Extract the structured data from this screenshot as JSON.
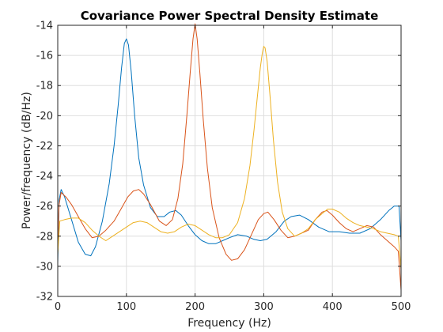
{
  "chart_data": {
    "type": "line",
    "title": "Covariance Power Spectral Density Estimate",
    "xlabel": "Frequency (Hz)",
    "ylabel": "Power/frequency (dB/Hz)",
    "xlim": [
      0,
      500
    ],
    "ylim": [
      -32,
      -14
    ],
    "xticks": [
      0,
      100,
      200,
      300,
      400,
      500
    ],
    "yticks": [
      -32,
      -30,
      -28,
      -26,
      -24,
      -22,
      -20,
      -18,
      -16,
      -14
    ],
    "grid": true,
    "series": [
      {
        "color": "#0072bd",
        "points": [
          [
            0,
            -29.8
          ],
          [
            2,
            -25.6
          ],
          [
            5,
            -24.9
          ],
          [
            10,
            -25.4
          ],
          [
            20,
            -26.9
          ],
          [
            30,
            -28.4
          ],
          [
            40,
            -29.2
          ],
          [
            48,
            -29.3
          ],
          [
            55,
            -28.7
          ],
          [
            65,
            -27.0
          ],
          [
            75,
            -24.5
          ],
          [
            82,
            -22.0
          ],
          [
            88,
            -19.3
          ],
          [
            93,
            -16.8
          ],
          [
            97,
            -15.2
          ],
          [
            100,
            -14.9
          ],
          [
            103,
            -15.3
          ],
          [
            107,
            -17.1
          ],
          [
            112,
            -20.0
          ],
          [
            118,
            -22.8
          ],
          [
            125,
            -24.6
          ],
          [
            135,
            -26.1
          ],
          [
            145,
            -26.7
          ],
          [
            155,
            -26.7
          ],
          [
            163,
            -26.4
          ],
          [
            172,
            -26.3
          ],
          [
            180,
            -26.6
          ],
          [
            190,
            -27.3
          ],
          [
            200,
            -27.9
          ],
          [
            210,
            -28.3
          ],
          [
            220,
            -28.5
          ],
          [
            230,
            -28.5
          ],
          [
            240,
            -28.3
          ],
          [
            250,
            -28.1
          ],
          [
            262,
            -27.9
          ],
          [
            275,
            -28.0
          ],
          [
            285,
            -28.2
          ],
          [
            295,
            -28.3
          ],
          [
            305,
            -28.2
          ],
          [
            318,
            -27.7
          ],
          [
            330,
            -27.0
          ],
          [
            340,
            -26.7
          ],
          [
            352,
            -26.6
          ],
          [
            365,
            -26.9
          ],
          [
            380,
            -27.4
          ],
          [
            395,
            -27.7
          ],
          [
            410,
            -27.7
          ],
          [
            425,
            -27.8
          ],
          [
            440,
            -27.8
          ],
          [
            455,
            -27.5
          ],
          [
            470,
            -26.9
          ],
          [
            482,
            -26.3
          ],
          [
            490,
            -26.0
          ],
          [
            497,
            -26.0
          ],
          [
            500,
            -28.3
          ]
        ]
      },
      {
        "color": "#d95319",
        "points": [
          [
            0,
            -28.7
          ],
          [
            2,
            -25.9
          ],
          [
            5,
            -25.1
          ],
          [
            12,
            -25.4
          ],
          [
            20,
            -25.9
          ],
          [
            30,
            -26.7
          ],
          [
            40,
            -27.5
          ],
          [
            50,
            -28.1
          ],
          [
            60,
            -28.0
          ],
          [
            70,
            -27.6
          ],
          [
            82,
            -27.0
          ],
          [
            92,
            -26.2
          ],
          [
            102,
            -25.4
          ],
          [
            110,
            -25.0
          ],
          [
            118,
            -24.9
          ],
          [
            125,
            -25.2
          ],
          [
            135,
            -25.9
          ],
          [
            148,
            -27.0
          ],
          [
            158,
            -27.3
          ],
          [
            167,
            -26.9
          ],
          [
            175,
            -25.5
          ],
          [
            182,
            -23.2
          ],
          [
            188,
            -20.0
          ],
          [
            193,
            -17.1
          ],
          [
            197,
            -14.9
          ],
          [
            200,
            -13.9
          ],
          [
            203,
            -14.9
          ],
          [
            207,
            -17.2
          ],
          [
            212,
            -20.3
          ],
          [
            218,
            -23.5
          ],
          [
            225,
            -26.1
          ],
          [
            235,
            -28.1
          ],
          [
            245,
            -29.2
          ],
          [
            253,
            -29.6
          ],
          [
            262,
            -29.5
          ],
          [
            272,
            -28.9
          ],
          [
            282,
            -27.9
          ],
          [
            292,
            -26.9
          ],
          [
            300,
            -26.5
          ],
          [
            306,
            -26.4
          ],
          [
            315,
            -26.9
          ],
          [
            325,
            -27.6
          ],
          [
            335,
            -28.1
          ],
          [
            345,
            -28.0
          ],
          [
            355,
            -27.8
          ],
          [
            365,
            -27.6
          ],
          [
            375,
            -26.9
          ],
          [
            385,
            -26.4
          ],
          [
            392,
            -26.3
          ],
          [
            400,
            -26.6
          ],
          [
            410,
            -27.1
          ],
          [
            420,
            -27.5
          ],
          [
            430,
            -27.7
          ],
          [
            440,
            -27.5
          ],
          [
            450,
            -27.3
          ],
          [
            460,
            -27.4
          ],
          [
            470,
            -27.9
          ],
          [
            480,
            -28.3
          ],
          [
            490,
            -28.7
          ],
          [
            496,
            -29.0
          ],
          [
            500,
            -31.6
          ]
        ]
      },
      {
        "color": "#edb120",
        "points": [
          [
            0,
            -29.2
          ],
          [
            3,
            -27.0
          ],
          [
            10,
            -26.9
          ],
          [
            20,
            -26.8
          ],
          [
            30,
            -26.8
          ],
          [
            40,
            -27.1
          ],
          [
            50,
            -27.6
          ],
          [
            60,
            -28.0
          ],
          [
            70,
            -28.3
          ],
          [
            80,
            -28.0
          ],
          [
            90,
            -27.7
          ],
          [
            100,
            -27.4
          ],
          [
            110,
            -27.1
          ],
          [
            120,
            -27.0
          ],
          [
            130,
            -27.1
          ],
          [
            140,
            -27.4
          ],
          [
            150,
            -27.7
          ],
          [
            160,
            -27.8
          ],
          [
            170,
            -27.7
          ],
          [
            180,
            -27.4
          ],
          [
            190,
            -27.2
          ],
          [
            200,
            -27.3
          ],
          [
            210,
            -27.6
          ],
          [
            220,
            -27.9
          ],
          [
            230,
            -28.1
          ],
          [
            240,
            -28.1
          ],
          [
            250,
            -27.9
          ],
          [
            262,
            -27.1
          ],
          [
            272,
            -25.5
          ],
          [
            280,
            -23.3
          ],
          [
            286,
            -20.9
          ],
          [
            291,
            -18.6
          ],
          [
            295,
            -16.8
          ],
          [
            298,
            -15.8
          ],
          [
            300,
            -15.4
          ],
          [
            302,
            -15.5
          ],
          [
            305,
            -16.4
          ],
          [
            309,
            -18.6
          ],
          [
            314,
            -21.6
          ],
          [
            320,
            -24.4
          ],
          [
            327,
            -26.4
          ],
          [
            335,
            -27.5
          ],
          [
            345,
            -28.0
          ],
          [
            355,
            -27.8
          ],
          [
            365,
            -27.5
          ],
          [
            375,
            -26.9
          ],
          [
            385,
            -26.5
          ],
          [
            393,
            -26.2
          ],
          [
            400,
            -26.2
          ],
          [
            410,
            -26.4
          ],
          [
            420,
            -26.8
          ],
          [
            430,
            -27.1
          ],
          [
            440,
            -27.3
          ],
          [
            450,
            -27.4
          ],
          [
            460,
            -27.5
          ],
          [
            470,
            -27.7
          ],
          [
            480,
            -27.8
          ],
          [
            490,
            -27.9
          ],
          [
            496,
            -28.0
          ],
          [
            500,
            -30.2
          ]
        ]
      }
    ]
  }
}
